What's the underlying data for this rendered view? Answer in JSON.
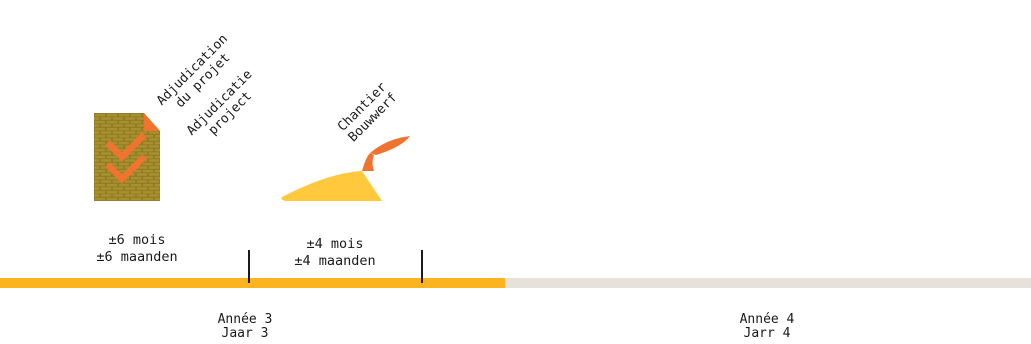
{
  "colors": {
    "accent": "#FBB41F",
    "track": "#E7E1DB",
    "brick": "#8F7A22",
    "orange": "#F07430",
    "trowel": "#FFC83D"
  },
  "milestones": [
    {
      "icon": "document-checklist-icon",
      "lines": [
        "Adjudication",
        "du projet"
      ]
    },
    {
      "icon": "document-checklist-icon",
      "lines": [
        "Adjudicatie",
        "project"
      ]
    },
    {
      "icon": "trowel-icon",
      "lines": [
        "Chantier",
        "Bouwwerf"
      ]
    }
  ],
  "durations": [
    {
      "fr": "±6 mois",
      "nl": "±6 maanden"
    },
    {
      "fr": "±4 mois",
      "nl": "±4 maanden"
    }
  ],
  "timeline": {
    "progress_fraction": 0.49
  },
  "years": [
    {
      "fr": "Année 3",
      "nl": "Jaar 3"
    },
    {
      "fr": "Année 4",
      "nl": "Jarr 4"
    }
  ]
}
